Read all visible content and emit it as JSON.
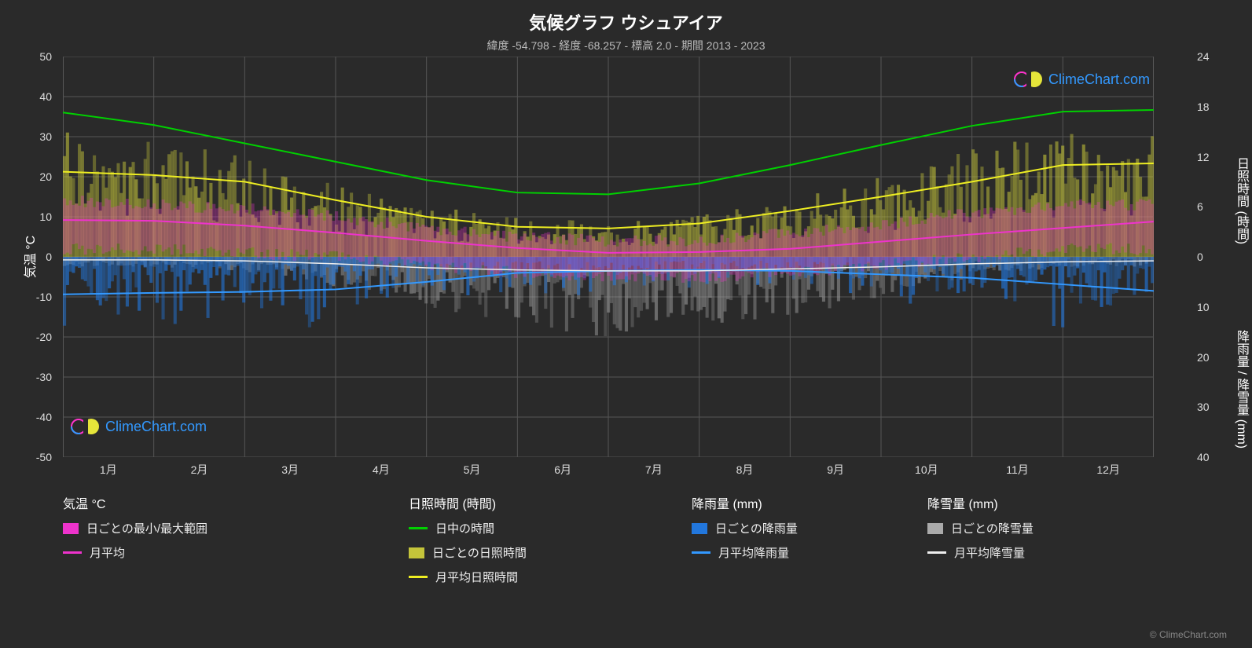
{
  "title": "気候グラフ ウシュアイア",
  "subtitle": "緯度 -54.798 - 経度 -68.257 - 標高 2.0 - 期間 2013 - 2023",
  "footer": "© ClimeChart.com",
  "brand": "ClimeChart.com",
  "chart": {
    "background": "#2a2a2a",
    "plot_bg": "#2a2a2a",
    "grid_color": "#555555",
    "border_color": "#888888",
    "months": [
      "1月",
      "2月",
      "3月",
      "4月",
      "5月",
      "6月",
      "7月",
      "8月",
      "9月",
      "10月",
      "11月",
      "12月"
    ],
    "y_left": {
      "label": "気温 °C",
      "min": -50,
      "max": 50,
      "ticks": [
        -50,
        -40,
        -30,
        -20,
        -10,
        0,
        10,
        20,
        30,
        40,
        50
      ]
    },
    "y_right_top": {
      "label": "日照時間 (時間)",
      "min": 0,
      "max": 24,
      "ticks": [
        0,
        6,
        12,
        18,
        24
      ],
      "anchor_temp_range": [
        0,
        50
      ]
    },
    "y_right_bottom": {
      "label": "降雨量 / 降雪量 (mm)",
      "min": 0,
      "max": 40,
      "ticks": [
        0,
        10,
        20,
        30,
        40
      ],
      "anchor_temp_range": [
        0,
        -50
      ]
    },
    "series": {
      "daylight": {
        "type": "line",
        "color": "#00d000",
        "width": 2,
        "values": [
          17.3,
          15.8,
          13.6,
          11.4,
          9.2,
          7.7,
          7.5,
          8.8,
          11.0,
          13.4,
          15.7,
          17.4,
          17.6
        ]
      },
      "sunshine_avg": {
        "type": "line",
        "color": "#eeee22",
        "width": 2,
        "values": [
          10.2,
          9.8,
          9.0,
          6.8,
          4.8,
          3.6,
          3.4,
          4.0,
          5.5,
          7.2,
          9.0,
          11.0,
          11.2
        ]
      },
      "temp_avg": {
        "type": "line",
        "color": "#ee33cc",
        "width": 2,
        "values": [
          9.2,
          9.0,
          7.8,
          6.0,
          4.0,
          2.2,
          1.0,
          1.2,
          2.0,
          3.8,
          5.6,
          7.2,
          8.8
        ]
      },
      "rain_avg": {
        "type": "line",
        "color": "#3399ff",
        "width": 2,
        "values": [
          7.5,
          7.2,
          7.0,
          6.5,
          5.0,
          3.2,
          2.8,
          2.6,
          2.8,
          3.5,
          4.2,
          5.5,
          6.8
        ]
      },
      "snow_avg": {
        "type": "line",
        "color": "#eeeeee",
        "width": 1.5,
        "values": [
          0.6,
          0.6,
          0.8,
          1.4,
          2.2,
          2.6,
          2.8,
          2.8,
          2.4,
          2.0,
          1.4,
          1.0,
          0.8
        ]
      },
      "temp_range_daily": {
        "type": "bars",
        "color": "#ee33cc",
        "opacity": 0.35,
        "low": [
          2,
          2,
          1,
          0,
          -2,
          -4,
          -5,
          -5,
          -4,
          -2,
          0,
          2
        ],
        "high": [
          14,
          13,
          12,
          10,
          7,
          5,
          4,
          4,
          6,
          8,
          11,
          13
        ]
      },
      "sunshine_daily": {
        "type": "bars",
        "color": "#c4c43a",
        "opacity": 0.5,
        "low": [
          0,
          0,
          0,
          0,
          0,
          0,
          0,
          0,
          0,
          0,
          0,
          0
        ],
        "high": [
          15,
          14,
          12,
          9,
          6,
          5,
          4,
          5,
          7,
          10,
          13,
          15
        ]
      },
      "rain_daily": {
        "type": "bars",
        "color": "#2277dd",
        "opacity": 0.5,
        "max": [
          18,
          16,
          15,
          14,
          12,
          9,
          8,
          7,
          8,
          10,
          13,
          16
        ]
      },
      "snow_daily": {
        "type": "bars",
        "color": "#aaaaaa",
        "opacity": 0.5,
        "max": [
          2,
          2,
          3,
          6,
          10,
          14,
          16,
          15,
          12,
          8,
          4,
          2
        ]
      }
    }
  },
  "legend": {
    "columns": [
      {
        "x": 0,
        "title": "気温 °C",
        "items": [
          {
            "kind": "swatch",
            "color": "#ee33cc",
            "label": "日ごとの最小/最大範囲"
          },
          {
            "kind": "line",
            "color": "#ee33cc",
            "label": "月平均"
          }
        ]
      },
      {
        "x": 440,
        "title": "日照時間 (時間)",
        "items": [
          {
            "kind": "line",
            "color": "#00d000",
            "label": "日中の時間"
          },
          {
            "kind": "swatch",
            "color": "#c4c43a",
            "label": "日ごとの日照時間"
          },
          {
            "kind": "line",
            "color": "#eeee22",
            "label": "月平均日照時間"
          }
        ]
      },
      {
        "x": 800,
        "title": "降雨量 (mm)",
        "items": [
          {
            "kind": "swatch",
            "color": "#2277dd",
            "label": "日ごとの降雨量"
          },
          {
            "kind": "line",
            "color": "#3399ff",
            "label": "月平均降雨量"
          }
        ]
      },
      {
        "x": 1100,
        "title": "降雪量 (mm)",
        "items": [
          {
            "kind": "swatch",
            "color": "#aaaaaa",
            "label": "日ごとの降雪量"
          },
          {
            "kind": "line",
            "color": "#eeeeee",
            "label": "月平均降雪量"
          }
        ]
      }
    ]
  }
}
